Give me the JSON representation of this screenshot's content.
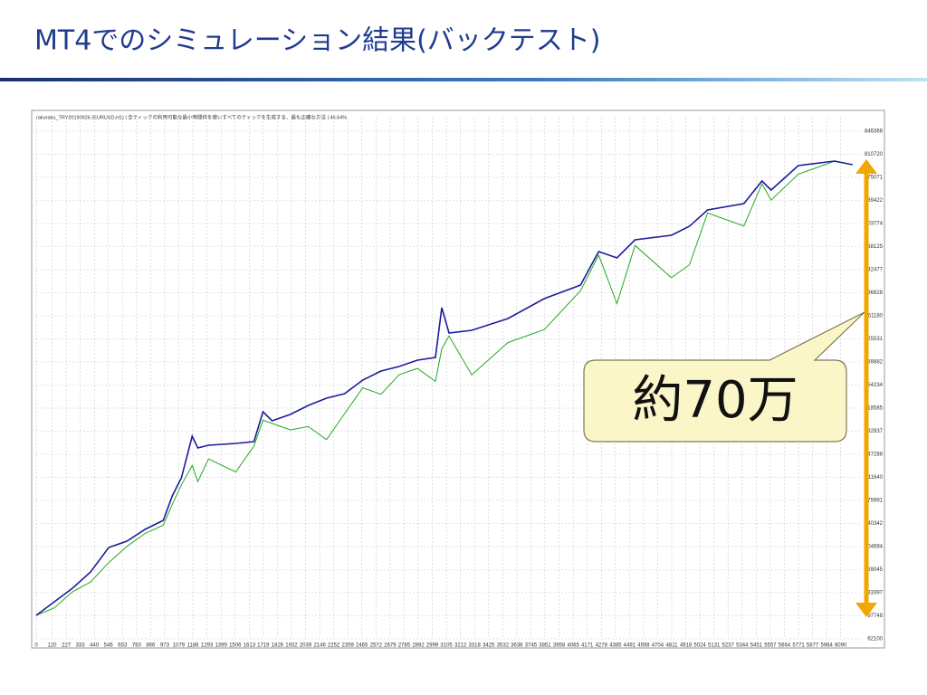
{
  "title": "MT4でのシミュレーション結果(バックテスト)",
  "callout": "約70万",
  "chart_data": {
    "type": "line",
    "caption": "rakuraku_TRY20190926 (EURUSD,H1) | 全ティックの利用可能な最小時間枠を使いすべてのティックを生成する、最も正確な方法 | 46.64%",
    "x": [
      0,
      137,
      275,
      412,
      549,
      687,
      824,
      962,
      1030,
      1099,
      1181,
      1223,
      1305,
      1511,
      1648,
      1717,
      1786,
      1923,
      2060,
      2198,
      2335,
      2472,
      2610,
      2747,
      2885,
      3022,
      3070,
      3125,
      3297,
      3571,
      3846,
      4121,
      4258,
      4396,
      4533,
      4808,
      4945,
      5082,
      5357,
      5494,
      5563,
      5769,
      6044,
      6180
    ],
    "series": [
      {
        "color": "#1c1c9c",
        "values": [
          98448,
          119418,
          140388,
          165552,
          203298,
          213084,
          231258,
          245238,
          282984,
          310944,
          375252,
          357078,
          361272,
          364068,
          366864,
          412998,
          399018,
          408804,
          422784,
          433968,
          440958,
          461928,
          475908,
          482898,
          492684,
          496878,
          573768,
          534624,
          538818,
          556992,
          587748,
          608718,
          660444,
          650658,
          678618,
          685608,
          699588,
          724752,
          734538,
          769488,
          755508,
          793254,
          800244,
          794652
        ]
      },
      {
        "color": "#22aa22",
        "values": [
          98448,
          110000,
          135000,
          150000,
          180000,
          205000,
          225000,
          238000,
          270000,
          300000,
          330000,
          305000,
          340000,
          320000,
          360000,
          400000,
          395000,
          385000,
          390000,
          370000,
          410000,
          450000,
          440000,
          470000,
          480000,
          460000,
          510000,
          530000,
          470000,
          520000,
          540000,
          600000,
          655000,
          580000,
          670000,
          620000,
          640000,
          720000,
          700000,
          765000,
          740000,
          780000,
          800000,
          794652
        ]
      }
    ],
    "xlim": [
      0,
      6250
    ],
    "xticks": [
      0,
      120,
      227,
      333,
      440,
      546,
      653,
      760,
      866,
      973,
      1079,
      1186,
      1293,
      1399,
      1506,
      1613,
      1719,
      1826,
      1932,
      2039,
      2146,
      2252,
      2359,
      2465,
      2572,
      2679,
      2785,
      2892,
      2999,
      3105,
      3212,
      3318,
      3425,
      3532,
      3638,
      3745,
      3851,
      3958,
      4065,
      4171,
      4278,
      4385,
      4491,
      4598,
      4704,
      4811,
      4918,
      5024,
      5131,
      5237,
      5344,
      5451,
      5557,
      5664,
      5771,
      5877,
      5984,
      6090
    ],
    "ylim": [
      62100,
      846368
    ],
    "yticks": [
      62100,
      97748,
      133397,
      169045,
      204694,
      240342,
      275991,
      311640,
      347288,
      382937,
      418585,
      454234,
      489882,
      525531,
      561180,
      596828,
      632477,
      668125,
      703774,
      739422,
      775071,
      810720,
      846368
    ],
    "grid": true
  }
}
